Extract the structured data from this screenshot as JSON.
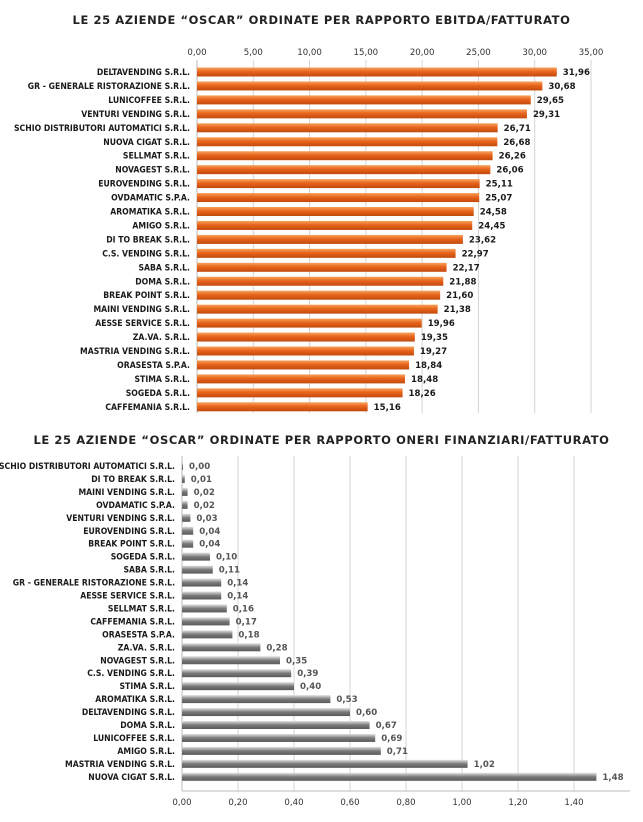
{
  "chart_data": [
    {
      "type": "bar",
      "orientation": "horizontal",
      "title": "LE 25 AZIENDE “OSCAR” ORDINATE PER RAPPORTO EBITDA/FATTURATO",
      "xlim": [
        0,
        35
      ],
      "xticks": [
        "0,00",
        "5,00",
        "10,00",
        "15,00",
        "20,00",
        "25,00",
        "30,00",
        "35,00"
      ],
      "xtick_values": [
        0,
        5,
        10,
        15,
        20,
        25,
        30,
        35
      ],
      "axis_position": "top",
      "grid": true,
      "bar_color": "#e8641c",
      "categories": [
        "DELTAVENDING S.R.L.",
        "GR - GENERALE RISTORAZIONE S.R.L.",
        "LUNICOFFEE S.R.L.",
        "VENTURI VENDING S.R.L.",
        "SCHIO DISTRIBUTORI AUTOMATICI S.R.L.",
        "NUOVA CIGAT S.R.L.",
        "SELLMAT S.R.L.",
        "NOVAGEST S.R.L.",
        "EUROVENDING S.R.L.",
        "OVDAMATIC S.P.A.",
        "AROMATIKA S.R.L.",
        "AMIGO S.R.L.",
        "DI TO BREAK S.R.L.",
        "C.S. VENDING S.R.L.",
        "SABA S.R.L.",
        "DOMA S.R.L.",
        "BREAK POINT S.R.L.",
        "MAINI VENDING S.R.L.",
        "AESSE SERVICE S.R.L.",
        "ZA.VA. S.R.L.",
        "MASTRIA VENDING S.R.L.",
        "ORASESTA S.P.A.",
        "STIMA S.R.L.",
        "SOGEDA S.R.L.",
        "CAFFEMANIA S.R.L."
      ],
      "values": [
        31.96,
        30.68,
        29.65,
        29.31,
        26.71,
        26.68,
        26.26,
        26.06,
        25.11,
        25.07,
        24.58,
        24.45,
        23.62,
        22.97,
        22.17,
        21.88,
        21.6,
        21.38,
        19.96,
        19.35,
        19.27,
        18.84,
        18.48,
        18.26,
        15.16
      ],
      "value_labels": [
        "31,96",
        "30,68",
        "29,65",
        "29,31",
        "26,71",
        "26,68",
        "26,26",
        "26,06",
        "25,11",
        "25,07",
        "24,58",
        "24,45",
        "23,62",
        "22,97",
        "22,17",
        "21,88",
        "21,60",
        "21,38",
        "19,96",
        "19,35",
        "19,27",
        "18,84",
        "18,48",
        "18,26",
        "15,16"
      ]
    },
    {
      "type": "bar",
      "orientation": "horizontal",
      "title": "LE 25 AZIENDE “OSCAR” ORDINATE PER RAPPORTO ONERI FINANZIARI/FATTURATO",
      "xlim": [
        0,
        1.6
      ],
      "xticks": [
        "0,00",
        "0,20",
        "0,40",
        "0,60",
        "0,80",
        "1,00",
        "1,20",
        "1,40"
      ],
      "xtick_values": [
        0,
        0.2,
        0.4,
        0.6,
        0.8,
        1.0,
        1.2,
        1.4
      ],
      "axis_position": "bottom",
      "grid": true,
      "bar_color": "#8c8c8c",
      "categories": [
        "SCHIO DISTRIBUTORI AUTOMATICI S.R.L.",
        "DI TO BREAK S.R.L.",
        "MAINI VENDING S.R.L.",
        "OVDAMATIC S.P.A.",
        "VENTURI VENDING S.R.L.",
        "EUROVENDING S.R.L.",
        "BREAK POINT S.R.L.",
        "SOGEDA S.R.L.",
        "SABA S.R.L.",
        "GR - GENERALE RISTORAZIONE S.R.L.",
        "AESSE SERVICE S.R.L.",
        "SELLMAT S.R.L.",
        "CAFFEMANIA S.R.L.",
        "ORASESTA S.P.A.",
        "ZA.VA. S.R.L.",
        "NOVAGEST S.R.L.",
        "C.S. VENDING S.R.L.",
        "STIMA S.R.L.",
        "AROMATIKA S.R.L.",
        "DELTAVENDING S.R.L.",
        "DOMA S.R.L.",
        "LUNICOFFEE S.R.L.",
        "AMIGO S.R.L.",
        "MASTRIA VENDING S.R.L.",
        "NUOVA CIGAT S.R.L."
      ],
      "values": [
        0.0,
        0.01,
        0.02,
        0.02,
        0.03,
        0.04,
        0.04,
        0.1,
        0.11,
        0.14,
        0.14,
        0.16,
        0.17,
        0.18,
        0.28,
        0.35,
        0.39,
        0.4,
        0.53,
        0.6,
        0.67,
        0.69,
        0.71,
        1.02,
        1.48
      ],
      "value_labels": [
        "0,00",
        "0,01",
        "0,02",
        "0,02",
        "0,03",
        "0,04",
        "0,04",
        "0,10",
        "0,11",
        "0,14",
        "0,14",
        "0,16",
        "0,17",
        "0,18",
        "0,28",
        "0,35",
        "0,39",
        "0,40",
        "0,53",
        "0,60",
        "0,67",
        "0,69",
        "0,71",
        "1,02",
        "1,48"
      ]
    }
  ]
}
